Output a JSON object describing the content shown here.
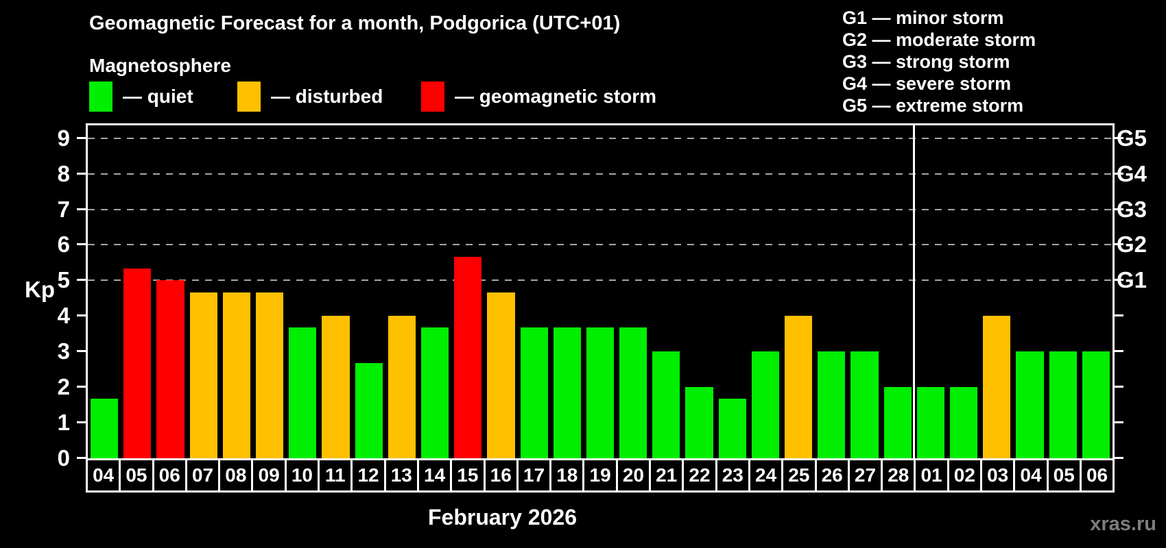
{
  "header": {
    "title": "Geomagnetic Forecast for a month, Podgorica (UTC+01)",
    "subtitle": "Magnetosphere"
  },
  "legend": {
    "items": [
      {
        "name": "quiet",
        "label": "— quiet"
      },
      {
        "name": "disturbed",
        "label": "— disturbed"
      },
      {
        "name": "storm",
        "label": "— geomagnetic storm"
      }
    ],
    "colors": {
      "quiet": "#00ee00",
      "disturbed": "#ffc000",
      "storm": "#ff0000"
    }
  },
  "g_legend": {
    "items": [
      "G1 — minor storm",
      "G2 — moderate storm",
      "G3 — strong storm",
      "G4 — severe storm",
      "G5 — extreme storm"
    ]
  },
  "watermark": "xras.ru",
  "chart_data": {
    "type": "bar",
    "title": "Geomagnetic Forecast for a month, Podgorica (UTC+01)",
    "xlabel": "February 2026",
    "ylabel": "Kp",
    "ylim": [
      0,
      9
    ],
    "yticks": [
      0,
      1,
      2,
      3,
      4,
      5,
      6,
      7,
      8,
      9
    ],
    "gridlines_at": [
      5,
      6,
      7,
      8,
      9
    ],
    "grid": "dashed horizontal at storm levels only",
    "legend_position": "top-left and top-right",
    "right_axis": [
      {
        "value": 5,
        "label": "G1"
      },
      {
        "value": 6,
        "label": "G2"
      },
      {
        "value": 7,
        "label": "G3"
      },
      {
        "value": 8,
        "label": "G4"
      },
      {
        "value": 9,
        "label": "G5"
      }
    ],
    "categories": [
      "04",
      "05",
      "06",
      "07",
      "08",
      "09",
      "10",
      "11",
      "12",
      "13",
      "14",
      "15",
      "16",
      "17",
      "18",
      "19",
      "20",
      "21",
      "22",
      "23",
      "24",
      "25",
      "26",
      "27",
      "28",
      "01",
      "02",
      "03",
      "04",
      "05",
      "06"
    ],
    "values": [
      1.67,
      5.33,
      5.0,
      4.67,
      4.67,
      4.67,
      3.67,
      4.0,
      2.67,
      4.0,
      3.67,
      5.67,
      4.67,
      3.67,
      3.67,
      3.67,
      3.67,
      3.0,
      2.0,
      1.67,
      3.0,
      4.0,
      3.0,
      3.0,
      2.0,
      2.0,
      2.0,
      4.0,
      3.0,
      3.0,
      3.0
    ],
    "status": [
      "quiet",
      "storm",
      "storm",
      "disturbed",
      "disturbed",
      "disturbed",
      "quiet",
      "disturbed",
      "quiet",
      "disturbed",
      "quiet",
      "storm",
      "disturbed",
      "quiet",
      "quiet",
      "quiet",
      "quiet",
      "quiet",
      "quiet",
      "quiet",
      "quiet",
      "disturbed",
      "quiet",
      "quiet",
      "quiet",
      "quiet",
      "quiet",
      "disturbed",
      "quiet",
      "quiet",
      "quiet"
    ],
    "month_separator_index": 25
  }
}
